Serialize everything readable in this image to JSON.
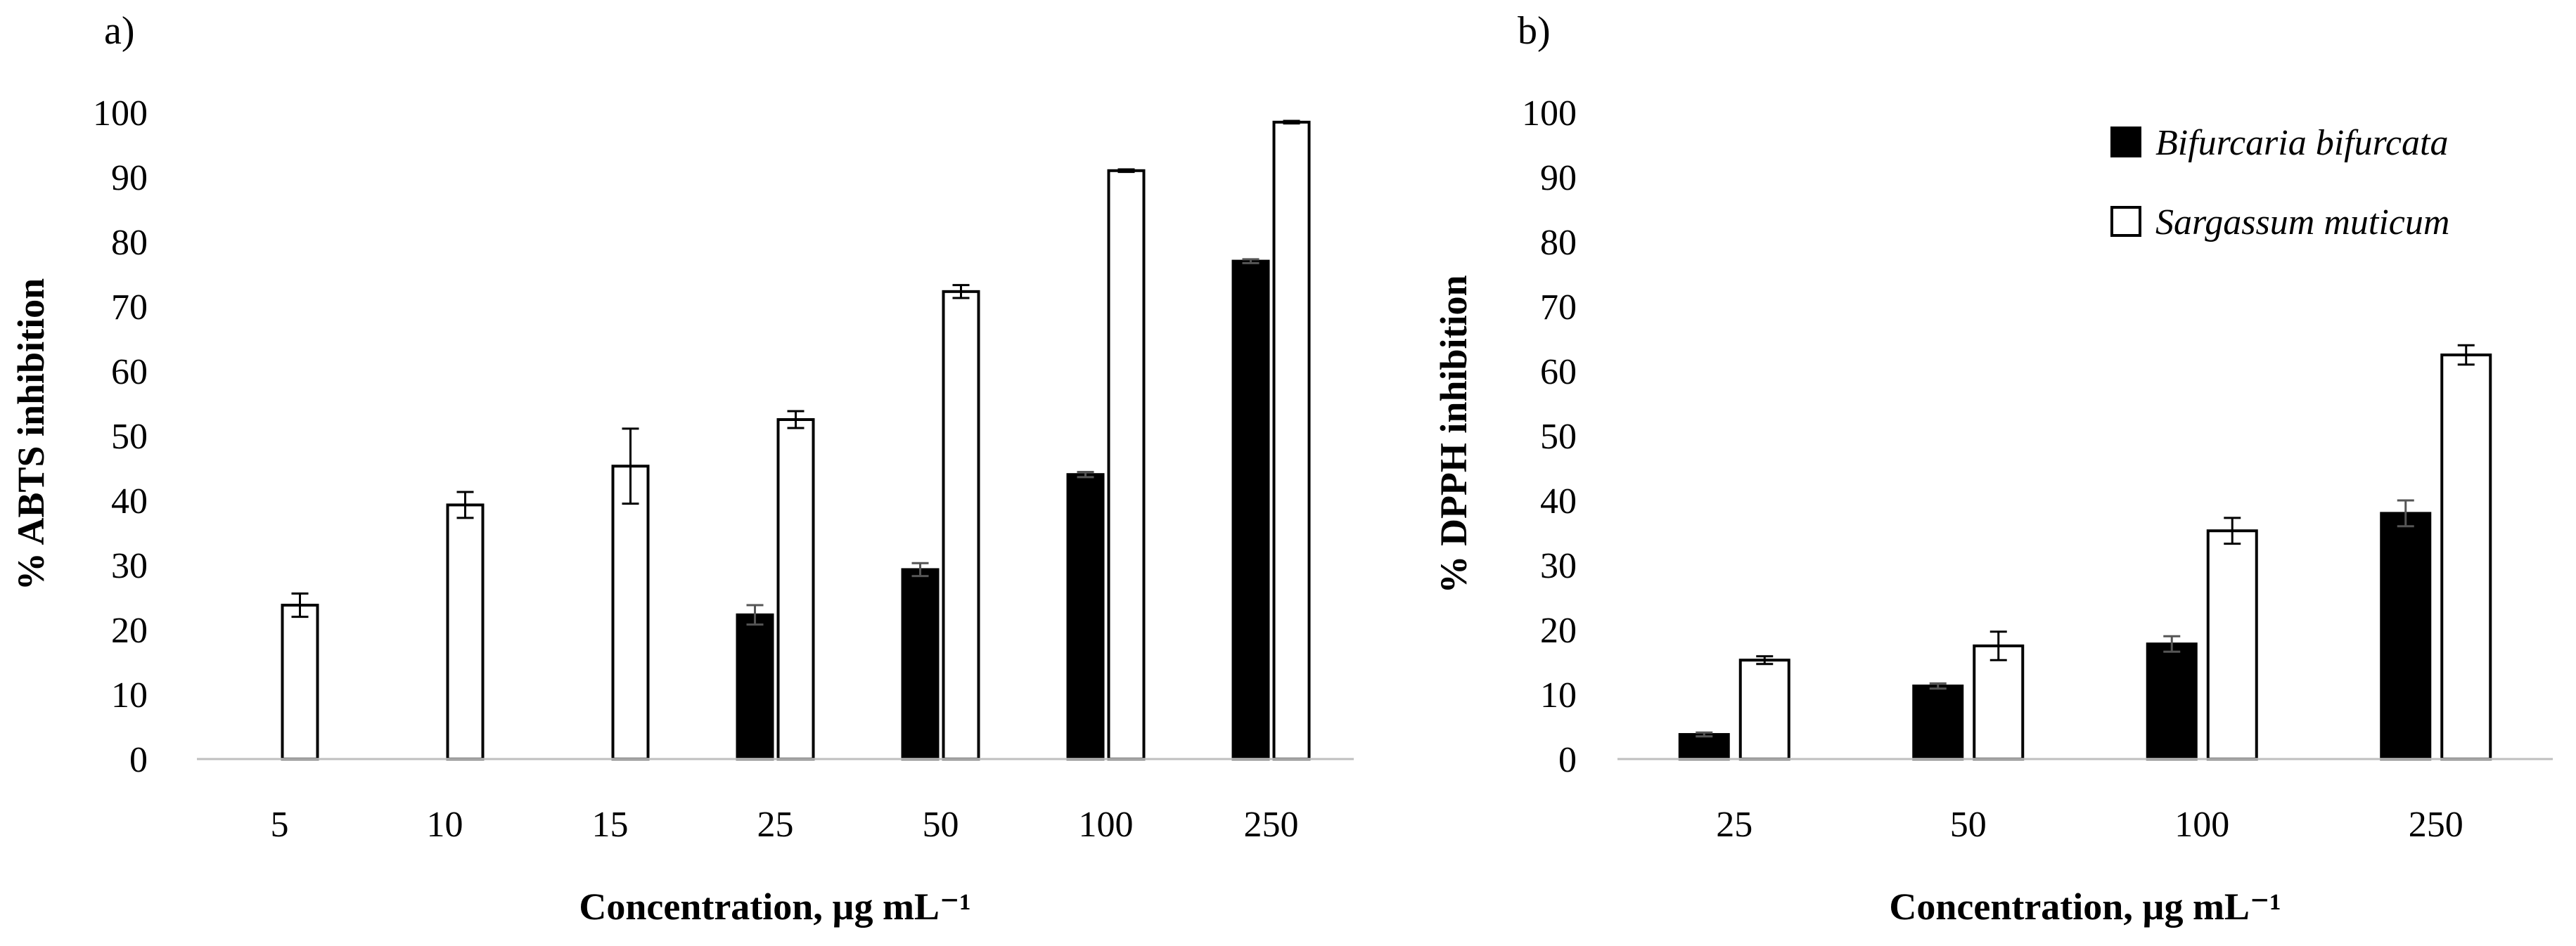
{
  "colors": {
    "series_filled": "#000000",
    "series_open": "#ffffff",
    "stroke": "#000000",
    "axis_line": "#bfbfbf"
  },
  "chart_data": [
    {
      "id": "a",
      "panel_label": "a)",
      "type": "bar",
      "xlabel": "Concentration, µg mL⁻¹",
      "ylabel": "% ABTS  inhibition",
      "ylim": [
        0,
        100
      ],
      "yticks": [
        0,
        10,
        20,
        30,
        40,
        50,
        60,
        70,
        80,
        90,
        100
      ],
      "grid": false,
      "categories": [
        "5",
        "10",
        "15",
        "25",
        "50",
        "100",
        "250"
      ],
      "series": [
        {
          "name": "Bifurcaria bifurcata",
          "fill": "filled",
          "values": [
            null,
            null,
            null,
            22.3,
            29.3,
            44.0,
            77.0
          ],
          "errors": [
            null,
            null,
            null,
            1.5,
            1.0,
            0.4,
            0.3
          ]
        },
        {
          "name": "Sargassum muticum",
          "fill": "open",
          "values": [
            23.8,
            39.3,
            45.3,
            52.5,
            72.3,
            91.0,
            98.5
          ],
          "errors": [
            1.8,
            2.0,
            5.8,
            1.3,
            1.0,
            0.2,
            0.2
          ]
        }
      ]
    },
    {
      "id": "b",
      "panel_label": "b)",
      "type": "bar",
      "xlabel": "Concentration, µg mL⁻¹",
      "ylabel": "% DPPH inhibition",
      "ylim": [
        0,
        100
      ],
      "yticks": [
        0,
        10,
        20,
        30,
        40,
        50,
        60,
        70,
        80,
        90,
        100
      ],
      "grid": false,
      "legend_position": "top-right",
      "categories": [
        "25",
        "50",
        "100",
        "250"
      ],
      "series": [
        {
          "name": "Bifurcaria bifurcata",
          "fill": "filled",
          "values": [
            3.8,
            11.3,
            17.8,
            38.0
          ],
          "errors": [
            0.3,
            0.4,
            1.2,
            2.0
          ]
        },
        {
          "name": "Sargassum muticum",
          "fill": "open",
          "values": [
            15.3,
            17.5,
            35.3,
            62.5
          ],
          "errors": [
            0.6,
            2.2,
            2.0,
            1.5
          ]
        }
      ],
      "legend": [
        "Bifurcaria bifurcata",
        "Sargassum muticum"
      ]
    }
  ]
}
